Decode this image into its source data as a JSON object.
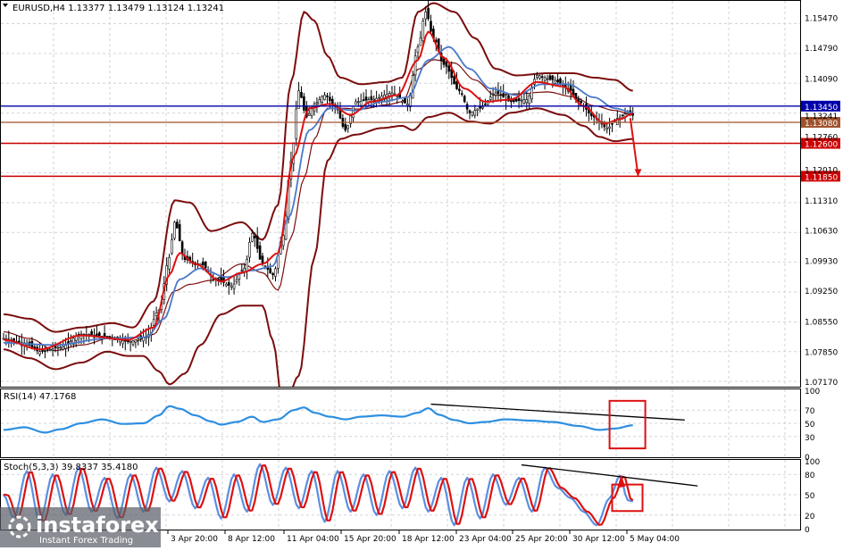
{
  "header": {
    "main": "EURUSD,H4  1.13377 1.13479 1.13124 1.13241",
    "rsi": "RSI(14) 47.1768",
    "stoch": "Stoch(5,3,3) 39.8337 35.4180"
  },
  "price_axis": [
    "1.15470",
    "1.14790",
    "1.14090",
    "1.13241",
    "1.12760",
    "1.12010",
    "1.11310",
    "1.10630",
    "1.09930",
    "1.09250",
    "1.08550",
    "1.07850",
    "1.07170"
  ],
  "level_lines": [
    {
      "value": 1.1345,
      "label": "1.13450",
      "color": "#0000aa",
      "kind": "blue"
    },
    {
      "value": 1.1308,
      "label": "1.13080",
      "color": "#a0522d",
      "kind": "brown"
    },
    {
      "value": 1.126,
      "label": "1.12600",
      "color": "#cc0000",
      "kind": "red"
    },
    {
      "value": 1.1185,
      "label": "1.11850",
      "color": "#cc0000",
      "kind": "red"
    }
  ],
  "time_axis": [
    "3 Apr 20:00",
    "8 Apr 12:00",
    "11 Apr 04:00",
    "15 Apr 20:00",
    "18 Apr 12:00",
    "23 Apr 04:00",
    "25 Apr 20:00",
    "30 Apr 12:00",
    "5 May 04:00"
  ],
  "rsi_axis": [
    "100",
    "70",
    "50",
    "30",
    "0"
  ],
  "stoch_axis": [
    "100",
    "80",
    "50",
    "20",
    "0"
  ],
  "watermark": {
    "brand": "instaforex",
    "tagline": "Instant Forex Trading"
  },
  "colors": {
    "candle": "#000000",
    "bollinger": "#7b0d0d",
    "ma_fast": "#dd1111",
    "ma_slow": "#4a78c8",
    "rsi": "#2d8fe0",
    "stoch_main": "#5b8fe0",
    "stoch_signal": "#dd1111",
    "highlight": "#dd1111"
  },
  "chart_data": [
    {
      "type": "line",
      "title": "EURUSD,H4",
      "ylim": [
        1.0705,
        1.1585
      ],
      "price_knots": [
        [
          0,
          1.0815
        ],
        [
          8,
          1.0805
        ],
        [
          14,
          1.0785
        ],
        [
          22,
          1.0795
        ],
        [
          30,
          1.0825
        ],
        [
          40,
          1.082
        ],
        [
          48,
          1.0808
        ],
        [
          55,
          1.0818
        ],
        [
          60,
          1.088
        ],
        [
          64,
          1.1
        ],
        [
          66,
          1.108
        ],
        [
          70,
          1.0995
        ],
        [
          76,
          1.0985
        ],
        [
          82,
          1.095
        ],
        [
          88,
          1.0935
        ],
        [
          93,
          1.0975
        ],
        [
          96,
          1.1055
        ],
        [
          100,
          1.0985
        ],
        [
          104,
          1.096
        ],
        [
          108,
          1.105
        ],
        [
          111,
          1.122
        ],
        [
          114,
          1.138
        ],
        [
          117,
          1.132
        ],
        [
          120,
          1.135
        ],
        [
          124,
          1.137
        ],
        [
          128,
          1.1345
        ],
        [
          132,
          1.129
        ],
        [
          136,
          1.1355
        ],
        [
          142,
          1.136
        ],
        [
          150,
          1.1375
        ],
        [
          156,
          1.135
        ],
        [
          160,
          1.148
        ],
        [
          163,
          1.156
        ],
        [
          166,
          1.15
        ],
        [
          170,
          1.144
        ],
        [
          176,
          1.138
        ],
        [
          180,
          1.133
        ],
        [
          184,
          1.134
        ],
        [
          190,
          1.1375
        ],
        [
          196,
          1.1355
        ],
        [
          202,
          1.136
        ],
        [
          206,
          1.1415
        ],
        [
          212,
          1.1405
        ],
        [
          218,
          1.1385
        ],
        [
          222,
          1.1355
        ],
        [
          228,
          1.132
        ],
        [
          233,
          1.1295
        ],
        [
          238,
          1.132
        ],
        [
          241,
          1.133
        ],
        [
          243,
          1.1324
        ]
      ],
      "bollinger_upper_knots": [
        [
          0,
          1.087
        ],
        [
          10,
          1.086
        ],
        [
          20,
          1.083
        ],
        [
          30,
          1.084
        ],
        [
          42,
          1.085
        ],
        [
          50,
          1.084
        ],
        [
          58,
          1.09
        ],
        [
          66,
          1.113
        ],
        [
          72,
          1.1125
        ],
        [
          80,
          1.106
        ],
        [
          92,
          1.108
        ],
        [
          100,
          1.104
        ],
        [
          106,
          1.112
        ],
        [
          111,
          1.14
        ],
        [
          116,
          1.156
        ],
        [
          120,
          1.154
        ],
        [
          125,
          1.146
        ],
        [
          130,
          1.141
        ],
        [
          138,
          1.1395
        ],
        [
          148,
          1.14
        ],
        [
          154,
          1.141
        ],
        [
          160,
          1.156
        ],
        [
          166,
          1.158
        ],
        [
          174,
          1.156
        ],
        [
          182,
          1.15
        ],
        [
          190,
          1.143
        ],
        [
          198,
          1.1415
        ],
        [
          210,
          1.142
        ],
        [
          220,
          1.142
        ],
        [
          228,
          1.141
        ],
        [
          236,
          1.1405
        ],
        [
          243,
          1.138
        ]
      ],
      "bollinger_lower_knots": [
        [
          0,
          1.079
        ],
        [
          10,
          1.077
        ],
        [
          20,
          1.0745
        ],
        [
          30,
          1.076
        ],
        [
          40,
          1.0785
        ],
        [
          48,
          1.0775
        ],
        [
          54,
          1.0775
        ],
        [
          60,
          1.074
        ],
        [
          64,
          1.071
        ],
        [
          70,
          1.0735
        ],
        [
          76,
          1.08
        ],
        [
          84,
          1.087
        ],
        [
          92,
          1.089
        ],
        [
          100,
          1.089
        ],
        [
          104,
          1.081
        ],
        [
          108,
          1.065
        ],
        [
          114,
          1.073
        ],
        [
          120,
          1.1
        ],
        [
          125,
          1.122
        ],
        [
          130,
          1.127
        ],
        [
          136,
          1.128
        ],
        [
          146,
          1.1295
        ],
        [
          154,
          1.13
        ],
        [
          158,
          1.129
        ],
        [
          164,
          1.132
        ],
        [
          172,
          1.133
        ],
        [
          180,
          1.131
        ],
        [
          188,
          1.1305
        ],
        [
          196,
          1.133
        ],
        [
          206,
          1.134
        ],
        [
          216,
          1.1325
        ],
        [
          224,
          1.13
        ],
        [
          230,
          1.1275
        ],
        [
          236,
          1.1265
        ],
        [
          243,
          1.127
        ]
      ],
      "ma_fast_knots": [
        [
          0,
          1.0812
        ],
        [
          14,
          1.079
        ],
        [
          30,
          1.0822
        ],
        [
          48,
          1.0812
        ],
        [
          58,
          1.084
        ],
        [
          64,
          1.096
        ],
        [
          68,
          1.101
        ],
        [
          74,
          1.0985
        ],
        [
          84,
          1.0945
        ],
        [
          92,
          1.0965
        ],
        [
          100,
          1.0985
        ],
        [
          106,
          1.101
        ],
        [
          112,
          1.123
        ],
        [
          118,
          1.134
        ],
        [
          126,
          1.135
        ],
        [
          134,
          1.1325
        ],
        [
          142,
          1.1355
        ],
        [
          152,
          1.137
        ],
        [
          160,
          1.145
        ],
        [
          164,
          1.1515
        ],
        [
          170,
          1.1455
        ],
        [
          178,
          1.1385
        ],
        [
          186,
          1.1355
        ],
        [
          196,
          1.136
        ],
        [
          206,
          1.14
        ],
        [
          216,
          1.139
        ],
        [
          224,
          1.1345
        ],
        [
          232,
          1.1305
        ],
        [
          238,
          1.1315
        ],
        [
          243,
          1.1328
        ]
      ],
      "ma_slow_knots": [
        [
          0,
          1.0805
        ],
        [
          20,
          1.08
        ],
        [
          40,
          1.0815
        ],
        [
          55,
          1.0818
        ],
        [
          62,
          1.086
        ],
        [
          68,
          1.095
        ],
        [
          76,
          1.0975
        ],
        [
          86,
          1.0955
        ],
        [
          96,
          1.097
        ],
        [
          104,
          1.098
        ],
        [
          110,
          1.109
        ],
        [
          118,
          1.129
        ],
        [
          126,
          1.134
        ],
        [
          136,
          1.1335
        ],
        [
          146,
          1.1355
        ],
        [
          156,
          1.1365
        ],
        [
          164,
          1.145
        ],
        [
          172,
          1.148
        ],
        [
          180,
          1.143
        ],
        [
          188,
          1.1385
        ],
        [
          198,
          1.137
        ],
        [
          208,
          1.1395
        ],
        [
          218,
          1.1395
        ],
        [
          228,
          1.1365
        ],
        [
          236,
          1.134
        ],
        [
          243,
          1.133
        ]
      ]
    },
    {
      "type": "line",
      "title": "RSI(14) 47.1768",
      "ylim": [
        0,
        100
      ],
      "ticks": [
        100,
        70,
        50,
        30,
        0
      ],
      "rsi_knots": [
        [
          0,
          40
        ],
        [
          8,
          44
        ],
        [
          16,
          36
        ],
        [
          22,
          41
        ],
        [
          30,
          50
        ],
        [
          38,
          56
        ],
        [
          46,
          49
        ],
        [
          54,
          50
        ],
        [
          60,
          62
        ],
        [
          64,
          76
        ],
        [
          68,
          72
        ],
        [
          74,
          62
        ],
        [
          80,
          53
        ],
        [
          84,
          48
        ],
        [
          90,
          52
        ],
        [
          96,
          60
        ],
        [
          100,
          52
        ],
        [
          106,
          56
        ],
        [
          112,
          70
        ],
        [
          116,
          74
        ],
        [
          120,
          66
        ],
        [
          126,
          60
        ],
        [
          132,
          56
        ],
        [
          138,
          60
        ],
        [
          146,
          62
        ],
        [
          154,
          60
        ],
        [
          160,
          66
        ],
        [
          164,
          73
        ],
        [
          168,
          63
        ],
        [
          174,
          55
        ],
        [
          180,
          50
        ],
        [
          186,
          52
        ],
        [
          194,
          56
        ],
        [
          204,
          54
        ],
        [
          212,
          52
        ],
        [
          222,
          46
        ],
        [
          230,
          40
        ],
        [
          236,
          42
        ],
        [
          243,
          47
        ]
      ],
      "trendline": [
        [
          165,
          79
        ],
        [
          263,
          55
        ]
      ],
      "current": 47.1768
    },
    {
      "type": "line",
      "title": "Stoch(5,3,3) 39.8337 35.4180",
      "ylim": [
        0,
        100
      ],
      "ticks": [
        100,
        80,
        50,
        20,
        0
      ],
      "main_cycles": [
        [
          0,
          50
        ],
        [
          4,
          15
        ],
        [
          9,
          85
        ],
        [
          14,
          10
        ],
        [
          19,
          80
        ],
        [
          24,
          20
        ],
        [
          29,
          90
        ],
        [
          34,
          25
        ],
        [
          39,
          75
        ],
        [
          44,
          15
        ],
        [
          49,
          80
        ],
        [
          54,
          25
        ],
        [
          59,
          90
        ],
        [
          64,
          40
        ],
        [
          69,
          85
        ],
        [
          74,
          30
        ],
        [
          79,
          75
        ],
        [
          84,
          15
        ],
        [
          89,
          80
        ],
        [
          94,
          25
        ],
        [
          99,
          95
        ],
        [
          104,
          35
        ],
        [
          109,
          90
        ],
        [
          114,
          30
        ],
        [
          119,
          85
        ],
        [
          124,
          10
        ],
        [
          129,
          85
        ],
        [
          134,
          25
        ],
        [
          139,
          80
        ],
        [
          144,
          20
        ],
        [
          149,
          85
        ],
        [
          154,
          30
        ],
        [
          159,
          90
        ],
        [
          164,
          25
        ],
        [
          169,
          75
        ],
        [
          174,
          5
        ],
        [
          179,
          75
        ],
        [
          184,
          15
        ],
        [
          189,
          80
        ],
        [
          194,
          35
        ],
        [
          199,
          75
        ],
        [
          204,
          25
        ],
        [
          209,
          90
        ],
        [
          214,
          60
        ],
        [
          219,
          45
        ],
        [
          224,
          25
        ],
        [
          229,
          5
        ],
        [
          234,
          45
        ],
        [
          238,
          78
        ],
        [
          241,
          42
        ],
        [
          243,
          40
        ]
      ],
      "signal_lag": 1.5,
      "trendline": [
        [
          200,
          94
        ],
        [
          268,
          63
        ]
      ],
      "current_main": 39.8337,
      "current_signal": 35.418
    }
  ]
}
